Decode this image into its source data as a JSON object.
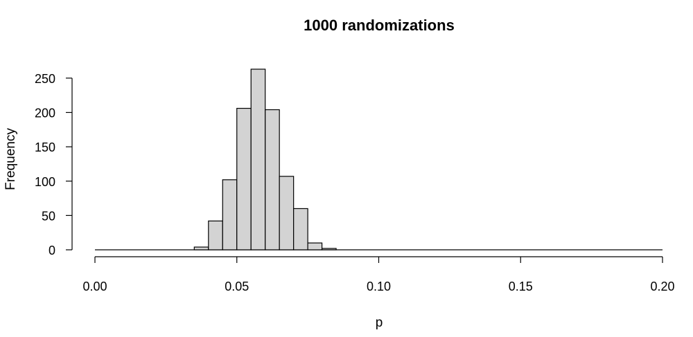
{
  "chart_data": {
    "type": "bar",
    "title": "1000 randomizations",
    "xlabel": "p",
    "ylabel": "Frequency",
    "xlim": [
      0,
      0.2
    ],
    "ylim": [
      0,
      265
    ],
    "bin_width": 0.005,
    "bins": [
      {
        "x0": 0.035,
        "x1": 0.04,
        "count": 4
      },
      {
        "x0": 0.04,
        "x1": 0.045,
        "count": 42
      },
      {
        "x0": 0.045,
        "x1": 0.05,
        "count": 102
      },
      {
        "x0": 0.05,
        "x1": 0.055,
        "count": 206
      },
      {
        "x0": 0.055,
        "x1": 0.06,
        "count": 263
      },
      {
        "x0": 0.06,
        "x1": 0.065,
        "count": 204
      },
      {
        "x0": 0.065,
        "x1": 0.07,
        "count": 107
      },
      {
        "x0": 0.07,
        "x1": 0.075,
        "count": 60
      },
      {
        "x0": 0.075,
        "x1": 0.08,
        "count": 10
      },
      {
        "x0": 0.08,
        "x1": 0.085,
        "count": 2
      }
    ],
    "x_ticks": [
      {
        "value": 0.0,
        "label": "0.00"
      },
      {
        "value": 0.05,
        "label": "0.05"
      },
      {
        "value": 0.1,
        "label": "0.10"
      },
      {
        "value": 0.15,
        "label": "0.15"
      },
      {
        "value": 0.2,
        "label": "0.20"
      }
    ],
    "y_ticks": [
      {
        "value": 0,
        "label": "0"
      },
      {
        "value": 50,
        "label": "50"
      },
      {
        "value": 100,
        "label": "100"
      },
      {
        "value": 150,
        "label": "150"
      },
      {
        "value": 200,
        "label": "200"
      },
      {
        "value": 250,
        "label": "250"
      }
    ],
    "bar_color": "#d3d3d3",
    "grid": false
  }
}
